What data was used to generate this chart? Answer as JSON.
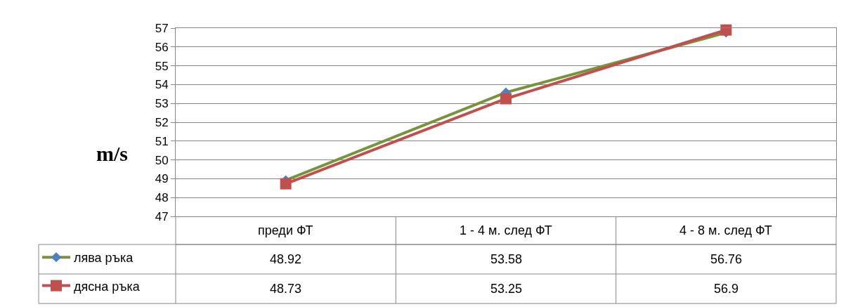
{
  "chart_data": {
    "type": "line",
    "ylabel": "m/s",
    "categories": [
      "преди ФТ",
      "1 - 4 м. след ФТ",
      "4 - 8 м. след ФТ"
    ],
    "series": [
      {
        "name": "лява ръка",
        "color": "#77933c",
        "marker": "diamond",
        "values": [
          48.92,
          53.58,
          56.76
        ]
      },
      {
        "name": "дясна ръка",
        "color": "#c0504d",
        "marker": "square",
        "values": [
          48.73,
          53.25,
          56.9
        ]
      }
    ],
    "ylim": [
      47,
      57
    ],
    "yticks": [
      47,
      48,
      49,
      50,
      51,
      52,
      53,
      54,
      55,
      56,
      57
    ],
    "grid": "y",
    "legend": "bottom left",
    "data_labels": true
  }
}
